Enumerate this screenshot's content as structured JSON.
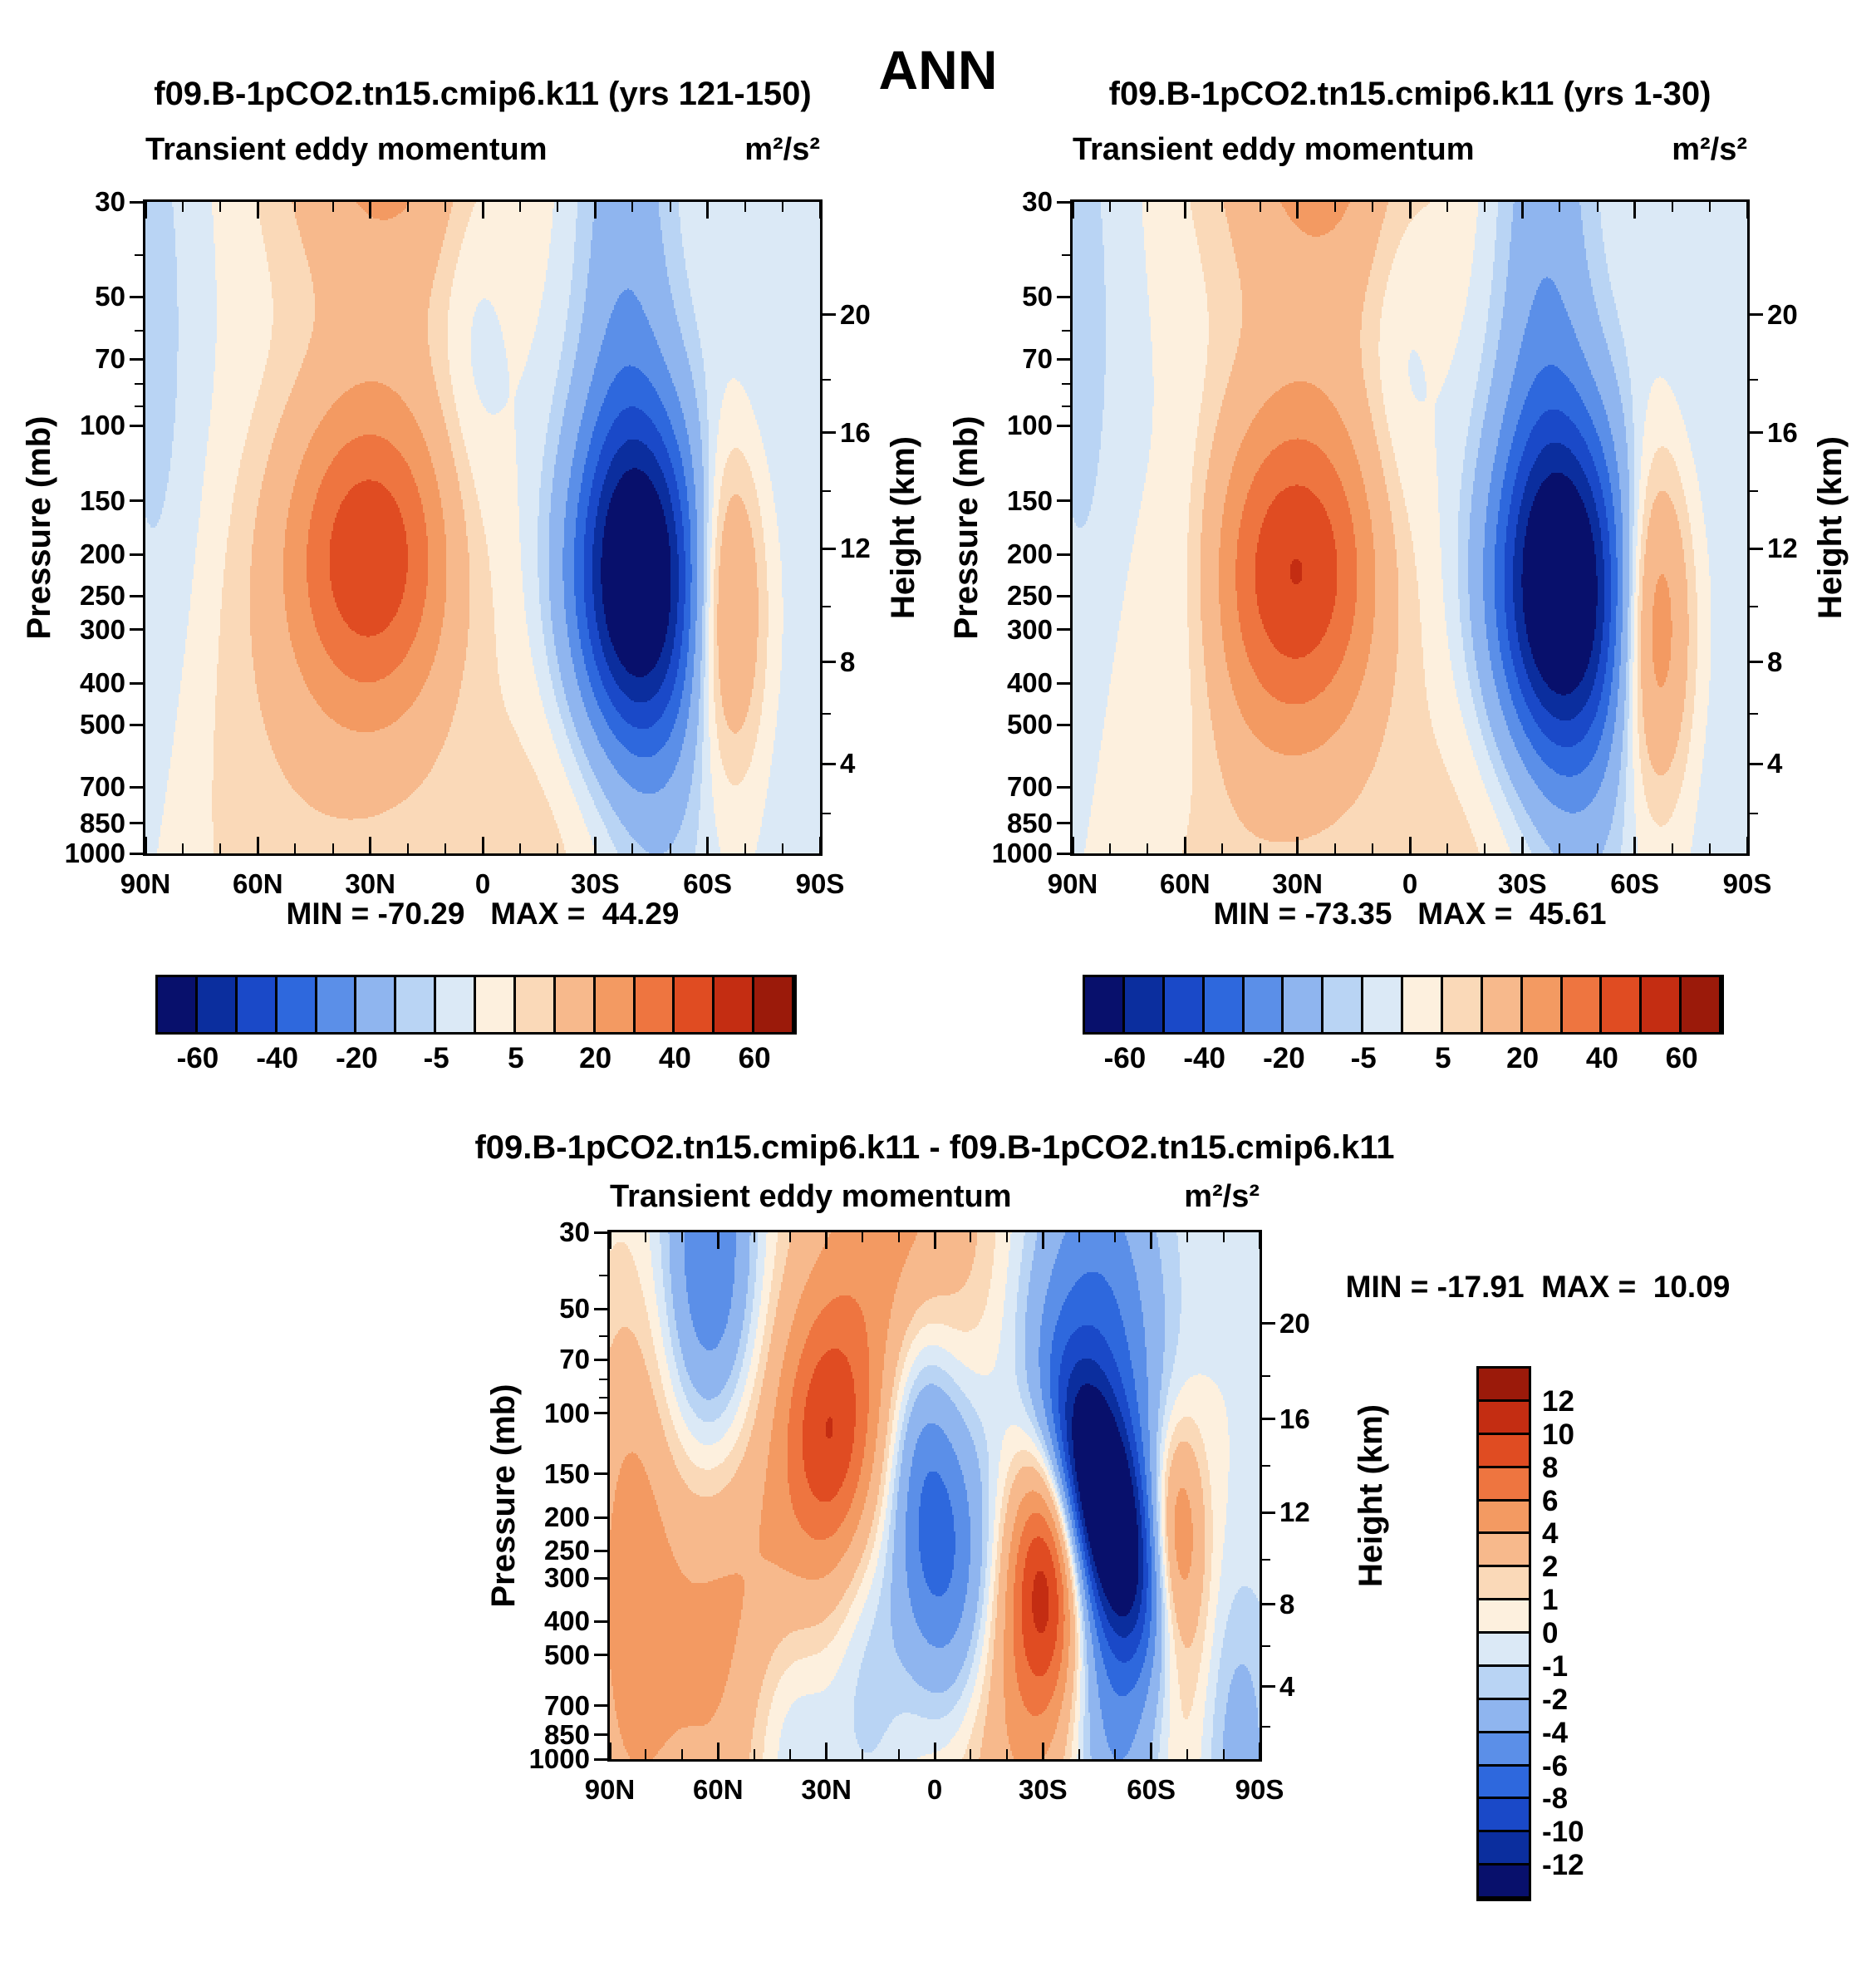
{
  "page": {
    "title": "ANN"
  },
  "palette16": [
    "#08106c",
    "#0b2e9e",
    "#1a49c8",
    "#2e68dd",
    "#5b8fe8",
    "#8fb5ef",
    "#b9d4f4",
    "#dbe9f6",
    "#fdf0de",
    "#fad9b8",
    "#f7b98c",
    "#f39a62",
    "#ee7540",
    "#e04c22",
    "#c42d12",
    "#9b1a0a"
  ],
  "chart_data": [
    {
      "type": "filled_contour",
      "panel": "top-left",
      "title": "f09.B-1pCO2.tn15.cmip6.k11 (yrs 121-150)",
      "subtitle": "Transient eddy momentum",
      "units": "m²/s²",
      "stat_text": "MIN = -70.29   MAX =  44.29",
      "min": -70.29,
      "max": 44.29,
      "x_ticks": [
        "90N",
        "60N",
        "30N",
        "0",
        "30S",
        "60S",
        "90S"
      ],
      "x_range_deg": [
        90,
        -90
      ],
      "pressure_label": "Pressure (mb)",
      "pressure_ticks": [
        30,
        50,
        70,
        100,
        150,
        200,
        250,
        300,
        400,
        500,
        700,
        850,
        1000
      ],
      "pressure_minor_ticks": [
        40,
        60,
        80,
        90
      ],
      "height_label": "Height (km)",
      "height_ticks": [
        20,
        16,
        12,
        8,
        4
      ],
      "height_minor_ticks": [
        18,
        14,
        10,
        6,
        2
      ],
      "colorbar_levels": [
        -60,
        -50,
        -40,
        -30,
        -20,
        -10,
        -5,
        0,
        5,
        10,
        20,
        30,
        40,
        50,
        60
      ],
      "colorbar_labels": [
        "-60",
        "-40",
        "-20",
        "-5",
        "5",
        "20",
        "40",
        "60"
      ],
      "approx_field_features": [
        {
          "amp": 46,
          "lat": 30,
          "p_mb": 200,
          "sigma_lat": 16,
          "sigma_logp": 0.27
        },
        {
          "amp": 26,
          "lat": 26,
          "p_mb": 18,
          "sigma_lat": 20,
          "sigma_logp": 0.34
        },
        {
          "amp": 7,
          "lat": 55,
          "p_mb": 750,
          "sigma_lat": 28,
          "sigma_logp": 0.5
        },
        {
          "amp": 5,
          "lat": -12,
          "p_mb": 950,
          "sigma_lat": 30,
          "sigma_logp": 0.35
        },
        {
          "amp": -74,
          "lat": -41,
          "p_mb": 230,
          "sigma_lat": 12.5,
          "sigma_logp": 0.28
        },
        {
          "amp": -16,
          "lat": -38,
          "p_mb": 45,
          "sigma_lat": 9,
          "sigma_logp": 0.5
        },
        {
          "amp": -9,
          "lat": -47,
          "p_mb": 650,
          "sigma_lat": 11,
          "sigma_logp": 0.5
        },
        {
          "amp": 30,
          "lat": -65,
          "p_mb": 260,
          "sigma_lat": 7,
          "sigma_logp": 0.27
        },
        {
          "amp": -7,
          "lat": 87,
          "p_mb": 90,
          "sigma_lat": 9,
          "sigma_logp": 0.9
        },
        {
          "amp": -6,
          "lat": 3,
          "p_mb": 55,
          "sigma_lat": 7,
          "sigma_logp": 0.55
        },
        {
          "amp": -5,
          "lat": -80,
          "p_mb": 45,
          "sigma_lat": 10,
          "sigma_logp": 0.5
        },
        {
          "amp": -4,
          "lat": -86,
          "p_mb": 950,
          "sigma_lat": 9,
          "sigma_logp": 0.35
        },
        {
          "amp": 3,
          "lat": -25,
          "p_mb": 600,
          "sigma_lat": 14,
          "sigma_logp": 0.5
        }
      ]
    },
    {
      "type": "filled_contour",
      "panel": "top-right",
      "title": "f09.B-1pCO2.tn15.cmip6.k11 (yrs 1-30)",
      "subtitle": "Transient eddy momentum",
      "units": "m²/s²",
      "stat_text": "MIN = -73.35   MAX =  45.61",
      "min": -73.35,
      "max": 45.61,
      "x_ticks": [
        "90N",
        "60N",
        "30N",
        "0",
        "30S",
        "60S",
        "90S"
      ],
      "x_range_deg": [
        90,
        -90
      ],
      "pressure_label": "Pressure (mb)",
      "pressure_ticks": [
        30,
        50,
        70,
        100,
        150,
        200,
        250,
        300,
        400,
        500,
        700,
        850,
        1000
      ],
      "pressure_minor_ticks": [
        40,
        60,
        80,
        90
      ],
      "height_label": "Height (km)",
      "height_ticks": [
        20,
        16,
        12,
        8,
        4
      ],
      "height_minor_ticks": [
        18,
        14,
        10,
        6,
        2
      ],
      "colorbar_levels": [
        -60,
        -50,
        -40,
        -30,
        -20,
        -10,
        -5,
        0,
        5,
        10,
        20,
        30,
        40,
        50,
        60
      ],
      "colorbar_labels": [
        "-60",
        "-40",
        "-20",
        "-5",
        "5",
        "20",
        "40",
        "60"
      ],
      "approx_field_features": [
        {
          "amp": 47,
          "lat": 30,
          "p_mb": 215,
          "sigma_lat": 16,
          "sigma_logp": 0.28
        },
        {
          "amp": 27,
          "lat": 24,
          "p_mb": 18,
          "sigma_lat": 20,
          "sigma_logp": 0.36
        },
        {
          "amp": 7,
          "lat": 55,
          "p_mb": 750,
          "sigma_lat": 28,
          "sigma_logp": 0.5
        },
        {
          "amp": 5,
          "lat": -12,
          "p_mb": 950,
          "sigma_lat": 30,
          "sigma_logp": 0.35
        },
        {
          "amp": -76,
          "lat": -40,
          "p_mb": 245,
          "sigma_lat": 13,
          "sigma_logp": 0.29
        },
        {
          "amp": -17,
          "lat": -36,
          "p_mb": 45,
          "sigma_lat": 9,
          "sigma_logp": 0.5
        },
        {
          "amp": -9,
          "lat": -46,
          "p_mb": 650,
          "sigma_lat": 11,
          "sigma_logp": 0.5
        },
        {
          "amp": 34,
          "lat": -65,
          "p_mb": 285,
          "sigma_lat": 7,
          "sigma_logp": 0.28
        },
        {
          "amp": -7,
          "lat": 87,
          "p_mb": 90,
          "sigma_lat": 9,
          "sigma_logp": 0.9
        },
        {
          "amp": -8,
          "lat": 60,
          "p_mb": 280,
          "sigma_lat": 8,
          "sigma_logp": 0.35
        },
        {
          "amp": -6,
          "lat": 3,
          "p_mb": 55,
          "sigma_lat": 7,
          "sigma_logp": 0.55
        },
        {
          "amp": -5,
          "lat": -80,
          "p_mb": 45,
          "sigma_lat": 10,
          "sigma_logp": 0.5
        },
        {
          "amp": -4,
          "lat": -86,
          "p_mb": 950,
          "sigma_lat": 9,
          "sigma_logp": 0.35
        },
        {
          "amp": 3,
          "lat": -25,
          "p_mb": 600,
          "sigma_lat": 14,
          "sigma_logp": 0.5
        }
      ]
    },
    {
      "type": "filled_contour",
      "panel": "bottom-difference",
      "title": "f09.B-1pCO2.tn15.cmip6.k11 - f09.B-1pCO2.tn15.cmip6.k11",
      "subtitle": "Transient eddy momentum",
      "units": "m²/s²",
      "stat_text": "MIN = -17.91  MAX =  10.09",
      "min": -17.91,
      "max": 10.09,
      "x_ticks": [
        "90N",
        "60N",
        "30N",
        "0",
        "30S",
        "60S",
        "90S"
      ],
      "x_range_deg": [
        90,
        -90
      ],
      "pressure_label": "Pressure (mb)",
      "pressure_ticks": [
        30,
        50,
        70,
        100,
        150,
        200,
        250,
        300,
        400,
        500,
        700,
        850,
        1000
      ],
      "pressure_minor_ticks": [
        40,
        60,
        80,
        90
      ],
      "height_label": "Height (km)",
      "height_ticks": [
        20,
        16,
        12,
        8,
        4
      ],
      "height_minor_ticks": [
        18,
        14,
        10,
        6,
        2
      ],
      "colorbar_levels": [
        -12,
        -10,
        -8,
        -6,
        -4,
        -2,
        -1,
        0,
        1,
        2,
        4,
        6,
        8,
        10,
        12
      ],
      "colorbar_labels": [
        "12",
        "10",
        "8",
        "6",
        "4",
        "2",
        "1",
        "0",
        "-1",
        "-2",
        "-4",
        "-6",
        "-8",
        "-10",
        "-12"
      ],
      "approx_field_features": [
        {
          "amp": -13,
          "lat": -47,
          "p_mb": 185,
          "sigma_lat": 7.5,
          "sigma_logp": 0.26,
          "tilt_deg_per_logp": -20
        },
        {
          "amp": -7,
          "lat": -44,
          "p_mb": 80,
          "sigma_lat": 13,
          "sigma_logp": 0.5
        },
        {
          "amp": -5,
          "lat": -50,
          "p_mb": 550,
          "sigma_lat": 9,
          "sigma_logp": 0.45
        },
        {
          "amp": 11,
          "lat": -31,
          "p_mb": 300,
          "sigma_lat": 7.5,
          "sigma_logp": 0.27
        },
        {
          "amp": 5,
          "lat": -67,
          "p_mb": 210,
          "sigma_lat": 5,
          "sigma_logp": 0.22
        },
        {
          "amp": 7,
          "lat": 29,
          "p_mb": 115,
          "sigma_lat": 9,
          "sigma_logp": 0.27
        },
        {
          "amp": 5,
          "lat": 55,
          "p_mb": 420,
          "sigma_lat": 24,
          "sigma_logp": 0.6
        },
        {
          "amp": -7,
          "lat": 62,
          "p_mb": 40,
          "sigma_lat": 9,
          "sigma_logp": 0.4
        },
        {
          "amp": -7,
          "lat": -5,
          "p_mb": 300,
          "sigma_lat": 9,
          "sigma_logp": 0.36
        },
        {
          "amp": -5,
          "lat": 4,
          "p_mb": 140,
          "sigma_lat": 7,
          "sigma_logp": 0.35
        },
        {
          "amp": 5,
          "lat": 10,
          "p_mb": 30,
          "sigma_lat": 18,
          "sigma_logp": 0.5
        },
        {
          "amp": 4,
          "lat": -18,
          "p_mb": 750,
          "sigma_lat": 18,
          "sigma_logp": 0.4
        },
        {
          "amp": 3,
          "lat": -70,
          "p_mb": 550,
          "sigma_lat": 7,
          "sigma_logp": 0.4
        },
        {
          "amp": -3,
          "lat": 18,
          "p_mb": 550,
          "sigma_lat": 8,
          "sigma_logp": 0.35
        },
        {
          "amp": 3,
          "lat": 85,
          "p_mb": 300,
          "sigma_lat": 8,
          "sigma_logp": 0.6
        },
        {
          "amp": -4,
          "lat": 40,
          "p_mb": 850,
          "sigma_lat": 10,
          "sigma_logp": 0.3
        },
        {
          "amp": -3,
          "lat": -82,
          "p_mb": 900,
          "sigma_lat": 9,
          "sigma_logp": 0.35
        }
      ]
    }
  ]
}
